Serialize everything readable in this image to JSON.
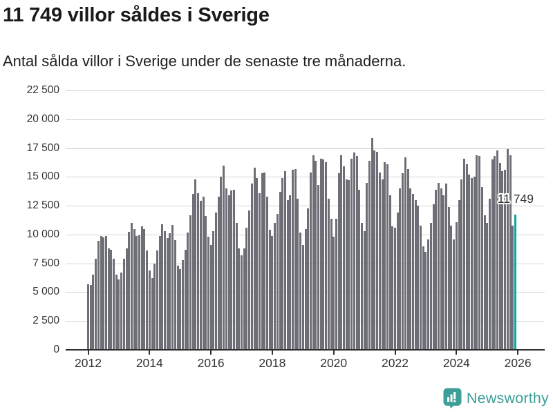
{
  "header": {
    "title": "11 749 villor såldes i Sverige",
    "subtitle": "Antal sålda villor i Sverige under de senaste tre månaderna."
  },
  "annotation": {
    "latest_label": "11 749"
  },
  "footer": {
    "brand": "Newsworthy"
  },
  "colors": {
    "bar": "#6e6e76",
    "highlight": "#0fa3a3",
    "grid": "#d4d4d4",
    "axis": "#2f2f2f",
    "tick_text": "#333333",
    "brand_teal": "#3d9e98",
    "background": "#ffffff"
  },
  "chart_data": {
    "type": "bar",
    "title": "11 749 villor såldes i Sverige",
    "subtitle": "Antal sålda villor i Sverige under de senaste tre månaderna.",
    "unit": "sålda villor (rullande 3 månader)",
    "frequency": "monthly",
    "start_month": "2012-01",
    "end_month": "2025-12",
    "grid": true,
    "ylim": [
      0,
      22500
    ],
    "y_tick_step": 2500,
    "y_tick_labels": [
      "0",
      "2 500",
      "5 000",
      "7 500",
      "10 000",
      "12 500",
      "15 000",
      "17 500",
      "20 000",
      "22 500"
    ],
    "x_tick_labels": [
      "2012",
      "2014",
      "2016",
      "2018",
      "2020",
      "2022",
      "2024",
      "2026"
    ],
    "highlight": {
      "index": 167,
      "value": 11749,
      "label": "11 749"
    },
    "values": [
      5700,
      5600,
      6550,
      7900,
      9450,
      9900,
      9750,
      9850,
      8800,
      8700,
      7900,
      6550,
      6100,
      6700,
      7900,
      8800,
      10250,
      11000,
      10450,
      9900,
      9950,
      10700,
      10500,
      8600,
      6900,
      6200,
      7500,
      8600,
      9900,
      10900,
      10300,
      9700,
      10100,
      10850,
      9500,
      7300,
      7000,
      7800,
      8700,
      10200,
      11700,
      13500,
      14800,
      13600,
      12900,
      13300,
      11600,
      9800,
      9100,
      10300,
      11900,
      13300,
      15000,
      16000,
      14000,
      13400,
      13800,
      13900,
      11000,
      8800,
      8200,
      8800,
      10600,
      12100,
      14400,
      15800,
      14900,
      13600,
      15300,
      15400,
      13300,
      10400,
      9900,
      11000,
      11800,
      13700,
      14900,
      15500,
      13000,
      13400,
      15600,
      15700,
      13100,
      10200,
      9100,
      10500,
      12300,
      15400,
      16900,
      16400,
      14300,
      16600,
      16500,
      16300,
      13100,
      11400,
      9800,
      11400,
      15300,
      16900,
      15900,
      14800,
      14700,
      16600,
      17100,
      16800,
      13900,
      11000,
      10300,
      14500,
      16400,
      18400,
      17300,
      17200,
      15400,
      14800,
      16300,
      16100,
      13400,
      10700,
      10600,
      11900,
      14000,
      15300,
      16700,
      15700,
      14000,
      13500,
      13000,
      12500,
      10800,
      9000,
      8500,
      9600,
      11000,
      12600,
      13900,
      14500,
      14000,
      13400,
      14400,
      12400,
      10800,
      9600,
      11100,
      13000,
      14800,
      16600,
      16100,
      15200,
      14900,
      15000,
      16900,
      16800,
      14100,
      11700,
      11000,
      13100,
      16500,
      16800,
      17300,
      16200,
      15500,
      15600,
      17400,
      16900,
      10800,
      11749
    ]
  }
}
